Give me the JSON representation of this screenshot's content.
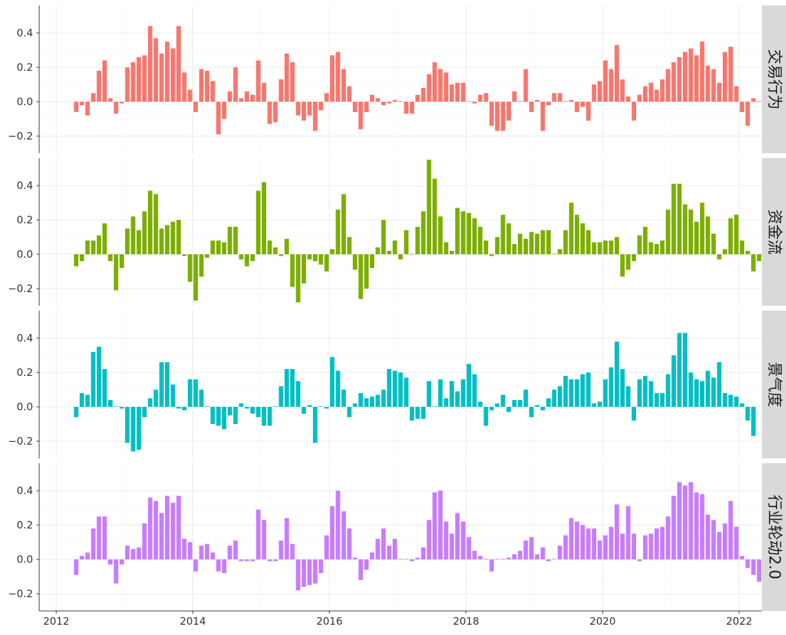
{
  "chart_data": {
    "type": "bar",
    "layout": "faceted-vertical",
    "x_tick_labels": [
      "2012",
      "2014",
      "2016",
      "2018",
      "2020",
      "2022"
    ],
    "y_tick_labels": [
      "−0.2",
      "0.0",
      "0.2",
      "0.4"
    ],
    "xlim": [
      "2011-10",
      "2022-05"
    ],
    "grid": true,
    "legend": "none",
    "panels": [
      {
        "name": "交易行为",
        "color": "#F8766D",
        "ylim": [
          -0.3,
          0.56
        ],
        "start": "2012-04",
        "values": [
          -0.06,
          -0.02,
          -0.08,
          0.05,
          0.18,
          0.24,
          0.02,
          -0.07,
          -0.01,
          0.2,
          0.23,
          0.26,
          0.27,
          0.44,
          0.37,
          0.28,
          0.35,
          0.31,
          0.44,
          0.17,
          0.07,
          -0.06,
          0.19,
          0.18,
          0.12,
          -0.19,
          -0.1,
          0.06,
          0.2,
          0.02,
          0.06,
          0.04,
          0.24,
          0.11,
          -0.13,
          -0.12,
          0.13,
          0.28,
          0.23,
          -0.08,
          -0.11,
          -0.08,
          -0.17,
          -0.05,
          0.05,
          0.27,
          0.29,
          0.19,
          0.09,
          -0.06,
          -0.16,
          -0.06,
          0.04,
          0.02,
          -0.02,
          -0.01,
          0.01,
          0.0,
          -0.07,
          -0.07,
          0.04,
          0.08,
          0.16,
          0.23,
          0.19,
          0.17,
          0.1,
          0.11,
          0.11,
          0.0,
          -0.01,
          0.04,
          0.05,
          -0.14,
          -0.17,
          -0.17,
          -0.11,
          0.06,
          0.0,
          0.19,
          -0.06,
          0.01,
          -0.17,
          -0.02,
          0.05,
          0.05,
          0.0,
          0.01,
          -0.06,
          -0.03,
          -0.11,
          0.1,
          0.12,
          0.24,
          0.19,
          0.33,
          0.13,
          0.03,
          -0.11,
          0.04,
          0.09,
          0.11,
          0.07,
          0.13,
          0.19,
          0.23,
          0.26,
          0.29,
          0.31,
          0.27,
          0.35,
          0.21,
          0.19,
          0.11,
          0.29,
          0.32,
          0.09,
          -0.06,
          -0.14,
          0.02,
          0.0
        ]
      },
      {
        "name": "资金流",
        "color": "#7CAE00",
        "ylim": [
          -0.3,
          0.56
        ],
        "start": "2012-04",
        "values": [
          -0.07,
          -0.04,
          0.08,
          0.08,
          0.11,
          0.18,
          -0.04,
          -0.21,
          -0.08,
          0.15,
          0.22,
          0.14,
          0.25,
          0.37,
          0.35,
          0.15,
          0.17,
          0.19,
          0.2,
          -0.01,
          -0.16,
          -0.27,
          -0.13,
          -0.02,
          0.08,
          0.08,
          0.07,
          0.16,
          0.16,
          -0.03,
          -0.07,
          -0.04,
          0.37,
          0.42,
          0.08,
          0.04,
          -0.01,
          0.09,
          -0.19,
          -0.28,
          -0.17,
          -0.03,
          -0.04,
          -0.06,
          -0.1,
          0.03,
          0.26,
          0.35,
          0.1,
          -0.09,
          -0.26,
          -0.2,
          -0.08,
          0.04,
          0.2,
          0.02,
          0.08,
          -0.03,
          0.14,
          0.0,
          0.16,
          0.25,
          0.55,
          0.44,
          0.22,
          0.07,
          0.02,
          0.27,
          0.25,
          0.24,
          0.21,
          0.16,
          0.08,
          -0.01,
          0.1,
          0.23,
          0.18,
          0.06,
          0.12,
          0.09,
          0.13,
          0.12,
          0.14,
          0.14,
          0.0,
          0.03,
          0.14,
          0.3,
          0.23,
          0.18,
          0.14,
          0.07,
          0.07,
          0.08,
          0.08,
          0.1,
          -0.13,
          -0.09,
          -0.04,
          0.11,
          0.16,
          0.07,
          0.06,
          0.08,
          0.26,
          0.41,
          0.41,
          0.29,
          0.26,
          0.19,
          0.3,
          0.22,
          0.12,
          -0.03,
          0.03,
          0.21,
          0.23,
          0.08,
          0.02,
          -0.1,
          -0.04
        ]
      },
      {
        "name": "景气度",
        "color": "#00BFC4",
        "ylim": [
          -0.3,
          0.56
        ],
        "start": "2012-04",
        "values": [
          -0.06,
          0.08,
          0.07,
          0.32,
          0.35,
          0.22,
          0.04,
          0.0,
          -0.01,
          -0.21,
          -0.26,
          -0.25,
          -0.06,
          0.05,
          0.1,
          0.26,
          0.26,
          0.13,
          -0.01,
          -0.02,
          0.16,
          0.16,
          0.1,
          0.0,
          -0.1,
          -0.11,
          -0.13,
          -0.05,
          -0.1,
          0.02,
          -0.01,
          -0.04,
          -0.06,
          -0.11,
          -0.11,
          0.0,
          0.12,
          0.22,
          0.22,
          0.15,
          -0.04,
          0.01,
          -0.21,
          0.0,
          -0.01,
          0.29,
          0.21,
          0.1,
          -0.06,
          0.02,
          0.08,
          0.05,
          0.06,
          0.07,
          0.1,
          0.22,
          0.21,
          0.2,
          0.17,
          -0.08,
          -0.07,
          -0.07,
          0.15,
          0.0,
          0.16,
          0.05,
          0.15,
          0.09,
          0.16,
          0.25,
          0.19,
          0.03,
          -0.11,
          -0.02,
          0.02,
          0.07,
          -0.03,
          0.04,
          0.04,
          0.1,
          -0.06,
          0.01,
          -0.02,
          0.05,
          0.1,
          0.12,
          0.18,
          0.16,
          0.16,
          0.19,
          0.2,
          0.02,
          0.03,
          0.16,
          0.23,
          0.38,
          0.22,
          0.12,
          -0.08,
          0.16,
          0.18,
          0.15,
          0.08,
          0.08,
          0.19,
          0.3,
          0.43,
          0.43,
          0.2,
          0.16,
          0.15,
          0.21,
          0.17,
          0.26,
          0.08,
          0.07,
          0.06,
          0.02,
          -0.08,
          -0.17
        ]
      },
      {
        "name": "行业轮动2.0",
        "color": "#C77CFF",
        "ylim": [
          -0.3,
          0.56
        ],
        "start": "2012-04",
        "values": [
          -0.09,
          0.02,
          0.04,
          0.18,
          0.25,
          0.25,
          -0.03,
          -0.14,
          -0.03,
          0.08,
          0.06,
          0.07,
          0.21,
          0.36,
          0.34,
          0.27,
          0.37,
          0.33,
          0.37,
          0.12,
          0.1,
          -0.07,
          0.08,
          0.09,
          0.04,
          -0.07,
          -0.08,
          0.08,
          0.11,
          -0.01,
          -0.01,
          -0.01,
          0.29,
          0.23,
          -0.01,
          -0.01,
          0.11,
          0.24,
          0.09,
          -0.18,
          -0.16,
          -0.15,
          -0.14,
          -0.08,
          0.14,
          0.31,
          0.4,
          0.28,
          0.18,
          0.01,
          -0.12,
          -0.06,
          0.04,
          0.12,
          0.18,
          0.08,
          0.12,
          0.0,
          0.0,
          -0.01,
          0.01,
          0.07,
          0.23,
          0.39,
          0.4,
          0.22,
          0.15,
          0.27,
          0.22,
          0.13,
          0.05,
          0.02,
          0.0,
          -0.07,
          0.0,
          0.0,
          0.01,
          0.03,
          0.05,
          0.11,
          0.13,
          0.03,
          0.07,
          -0.01,
          0.0,
          0.08,
          0.14,
          0.24,
          0.22,
          0.2,
          0.18,
          0.18,
          0.11,
          0.14,
          0.19,
          0.32,
          0.15,
          0.31,
          0.15,
          -0.01,
          0.14,
          0.15,
          0.18,
          0.19,
          0.25,
          0.37,
          0.45,
          0.43,
          0.45,
          0.39,
          0.38,
          0.26,
          0.23,
          0.16,
          0.21,
          0.34,
          0.19,
          0.02,
          -0.05,
          -0.09,
          -0.13
        ]
      }
    ]
  }
}
